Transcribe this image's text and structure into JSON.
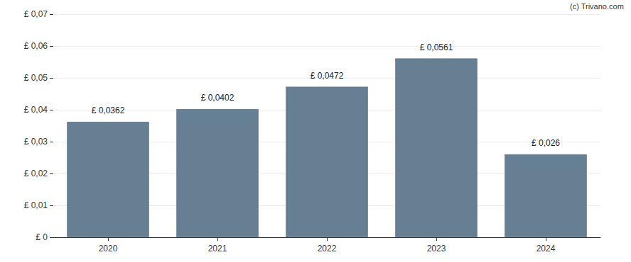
{
  "chart_data": {
    "type": "bar",
    "annotations": [
      "(c) Trivano.com"
    ],
    "categories": [
      "2020",
      "2021",
      "2022",
      "2023",
      "2024"
    ],
    "values": [
      0.0362,
      0.0402,
      0.0472,
      0.0561,
      0.026
    ],
    "value_labels": [
      "£ 0,0362",
      "£ 0,0402",
      "£ 0,0472",
      "£ 0,0561",
      "£ 0,026"
    ],
    "data_labels": true,
    "color": "#667f92",
    "ylim": [
      0,
      0.07
    ],
    "yticks": [
      {
        "value": 0,
        "label": "£ 0"
      },
      {
        "value": 0.01,
        "label": "£ 0,01"
      },
      {
        "value": 0.02,
        "label": "£ 0,02"
      },
      {
        "value": 0.03,
        "label": "£ 0,03"
      },
      {
        "value": 0.04,
        "label": "£ 0,04"
      },
      {
        "value": 0.05,
        "label": "£ 0,05"
      },
      {
        "value": 0.06,
        "label": "£ 0,06"
      },
      {
        "value": 0.07,
        "label": "£ 0,07"
      }
    ],
    "grid": true
  }
}
